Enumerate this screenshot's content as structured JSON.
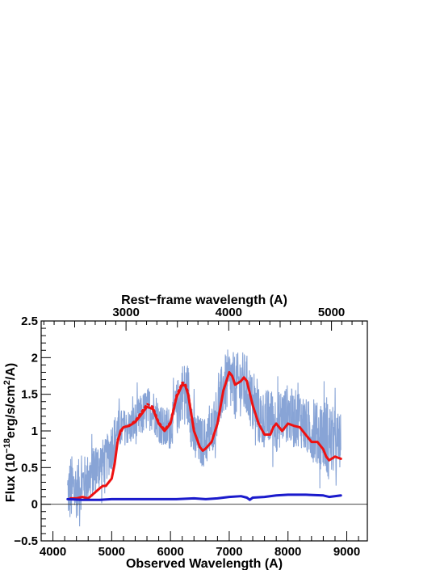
{
  "chart_data": {
    "type": "line",
    "xlabel": "Observed Wavelength (A)",
    "top_xlabel": "Rest−frame wavelength (A)",
    "ylabel_parts": [
      "Flux (10",
      "−18",
      "erg/s/cm",
      "2",
      "/A)"
    ],
    "xlim": [
      3800,
      9350
    ],
    "ylim": [
      -0.5,
      2.5
    ],
    "x_ticks": [
      4000,
      5000,
      6000,
      7000,
      8000,
      9000
    ],
    "x_tick_labels": [
      "4000",
      "5000",
      "6000",
      "7000",
      "8000",
      "9000"
    ],
    "y_ticks": [
      -0.5,
      0,
      0.5,
      1,
      1.5,
      2,
      2.5
    ],
    "y_tick_labels": [
      "−0.5",
      "0",
      "0.5",
      "1",
      "1.5",
      "2",
      "2.5"
    ],
    "top_axis": {
      "ticks": [
        3000,
        4000,
        5000
      ],
      "tick_labels": [
        "3000",
        "4000",
        "5000"
      ],
      "observed_per_rest": 1.748
    },
    "grid": false,
    "legend": "none",
    "zero_line": 0,
    "series": [
      {
        "style": "noisy-band",
        "color": "#7b9ad2",
        "x": [
          4250,
          4300,
          4400,
          4500,
          4600,
          4700,
          4800,
          4900,
          5000,
          5100,
          5200,
          5300,
          5400,
          5500,
          5600,
          5700,
          5800,
          5900,
          6000,
          6100,
          6200,
          6300,
          6400,
          6500,
          6600,
          6700,
          6800,
          6900,
          7000,
          7100,
          7200,
          7300,
          7400,
          7500,
          7600,
          7700,
          7800,
          7900,
          8000,
          8100,
          8200,
          8300,
          8400,
          8500,
          8600,
          8700,
          8800,
          8900
        ],
        "y": [
          0.15,
          0.2,
          0.2,
          0.3,
          0.35,
          0.45,
          0.55,
          0.6,
          0.8,
          1.0,
          1.05,
          1.05,
          1.1,
          1.2,
          1.3,
          1.3,
          1.15,
          1.0,
          1.05,
          1.3,
          1.55,
          1.5,
          0.9,
          0.85,
          0.85,
          1.0,
          1.3,
          1.6,
          1.7,
          1.6,
          1.65,
          1.6,
          1.35,
          1.2,
          1.15,
          1.2,
          1.1,
          1.2,
          1.25,
          1.15,
          1.2,
          1.05,
          1.0,
          0.95,
          0.95,
          0.9,
          0.85,
          0.85
        ],
        "noise": [
          0.35,
          0.5,
          0.4,
          0.35,
          0.35,
          0.35,
          0.35,
          0.3,
          0.35,
          0.3,
          0.25,
          0.25,
          0.3,
          0.3,
          0.3,
          0.3,
          0.3,
          0.3,
          0.3,
          0.35,
          0.4,
          0.45,
          0.4,
          0.35,
          0.35,
          0.35,
          0.35,
          0.4,
          0.45,
          0.45,
          0.45,
          0.45,
          0.4,
          0.4,
          0.4,
          0.4,
          0.4,
          0.4,
          0.4,
          0.4,
          0.4,
          0.4,
          0.4,
          0.45,
          0.5,
          0.5,
          0.45,
          0.4
        ]
      },
      {
        "style": "solid",
        "color": "#ee1111",
        "x": [
          4300,
          4400,
          4500,
          4600,
          4700,
          4800,
          4850,
          4900,
          5000,
          5050,
          5100,
          5150,
          5200,
          5300,
          5400,
          5500,
          5600,
          5700,
          5800,
          5900,
          6000,
          6100,
          6200,
          6250,
          6300,
          6400,
          6500,
          6550,
          6600,
          6700,
          6800,
          6900,
          7000,
          7050,
          7100,
          7200,
          7250,
          7300,
          7400,
          7500,
          7600,
          7700,
          7750,
          7800,
          7900,
          8000,
          8100,
          8200,
          8300,
          8400,
          8500,
          8600,
          8650,
          8700,
          8800,
          8900
        ],
        "y": [
          0.08,
          0.08,
          0.1,
          0.08,
          0.15,
          0.22,
          0.25,
          0.25,
          0.35,
          0.55,
          0.85,
          1.0,
          1.05,
          1.07,
          1.12,
          1.22,
          1.33,
          1.3,
          1.1,
          1.0,
          1.1,
          1.45,
          1.63,
          1.62,
          1.5,
          1.0,
          0.78,
          0.73,
          0.76,
          0.85,
          1.1,
          1.55,
          1.8,
          1.75,
          1.63,
          1.68,
          1.73,
          1.68,
          1.35,
          1.1,
          0.95,
          0.95,
          1.05,
          1.1,
          1.0,
          1.1,
          1.07,
          1.05,
          0.95,
          0.85,
          0.85,
          0.75,
          0.65,
          0.6,
          0.65,
          0.62
        ]
      },
      {
        "style": "dotted",
        "color": "#ee1111",
        "x": [
          5100,
          5200,
          5300,
          5400,
          5500,
          5600,
          5700,
          5800,
          5900,
          6000,
          6100,
          6200,
          6250,
          6300,
          6400
        ],
        "y": [
          0.88,
          1.05,
          1.08,
          1.14,
          1.25,
          1.37,
          1.33,
          1.12,
          1.02,
          1.12,
          1.48,
          1.66,
          1.65,
          1.53,
          1.02
        ]
      },
      {
        "style": "solid",
        "color": "#1a1acc",
        "x": [
          4250,
          4500,
          4800,
          5000,
          5200,
          5500,
          5800,
          6100,
          6400,
          6600,
          6800,
          7000,
          7200,
          7300,
          7350,
          7400,
          7600,
          7800,
          8000,
          8300,
          8600,
          8700,
          8900
        ],
        "y": [
          0.07,
          0.06,
          0.06,
          0.07,
          0.07,
          0.07,
          0.07,
          0.07,
          0.08,
          0.07,
          0.08,
          0.1,
          0.11,
          0.09,
          0.06,
          0.09,
          0.1,
          0.12,
          0.13,
          0.13,
          0.12,
          0.1,
          0.12
        ]
      }
    ]
  }
}
